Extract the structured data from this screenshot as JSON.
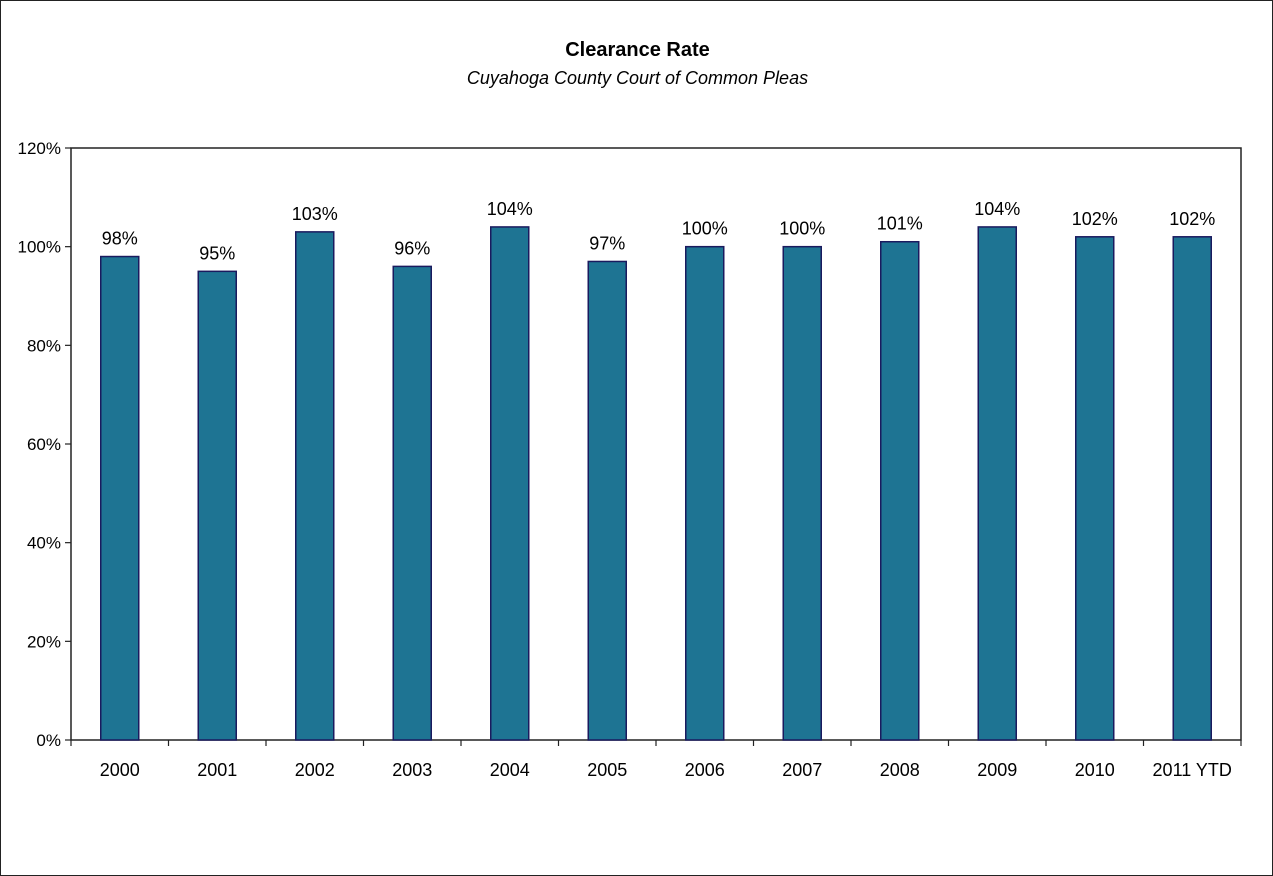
{
  "chart_data": {
    "type": "bar",
    "title": "Clearance Rate",
    "subtitle": "Cuyahoga County Court of Common Pleas",
    "categories": [
      "2000",
      "2001",
      "2002",
      "2003",
      "2004",
      "2005",
      "2006",
      "2007",
      "2008",
      "2009",
      "2010",
      "2011 YTD"
    ],
    "values": [
      98,
      95,
      103,
      96,
      104,
      97,
      100,
      100,
      101,
      104,
      102,
      102
    ],
    "value_labels": [
      "98%",
      "95%",
      "103%",
      "96%",
      "104%",
      "97%",
      "100%",
      "100%",
      "101%",
      "104%",
      "102%",
      "102%"
    ],
    "ylim": [
      0,
      120
    ],
    "yticks": [
      0,
      20,
      40,
      60,
      80,
      100,
      120
    ],
    "ytick_labels": [
      "0%",
      "20%",
      "40%",
      "60%",
      "80%",
      "100%",
      "120%"
    ],
    "xlabel": "",
    "ylabel": "",
    "grid": false,
    "legend": "none",
    "bar_color": "#1e7493",
    "bar_edge_color": "#1a1a5e"
  }
}
